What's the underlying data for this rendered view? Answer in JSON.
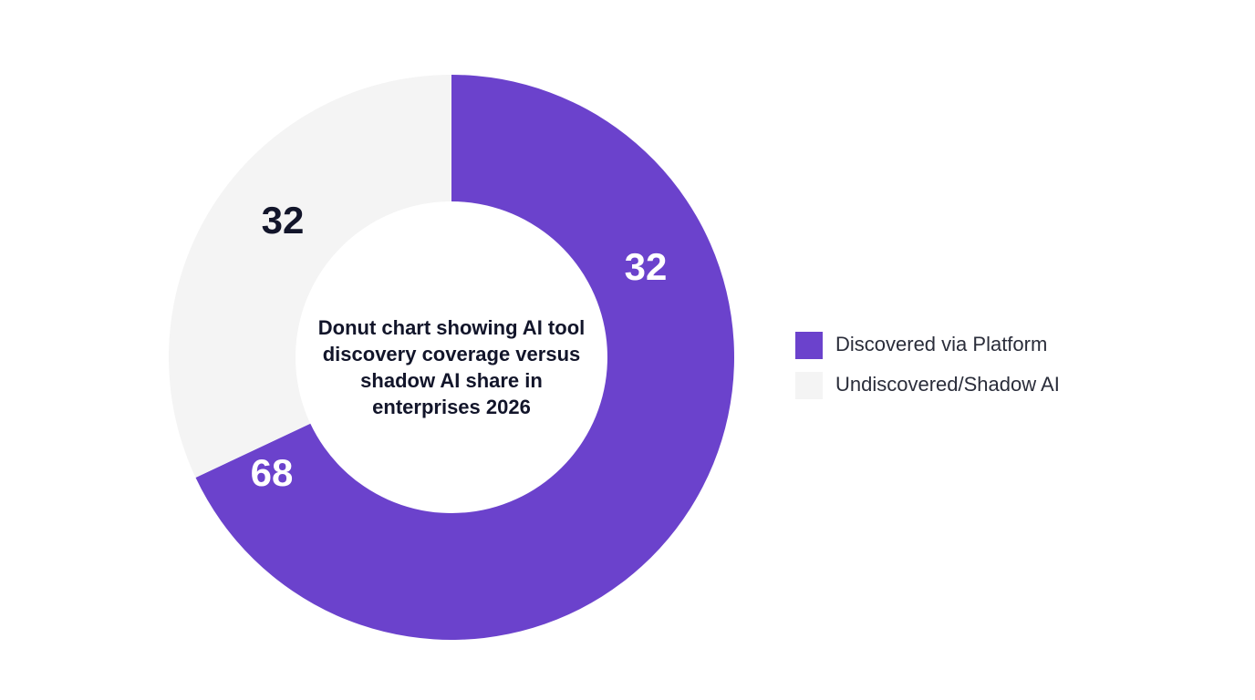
{
  "chart_data": {
    "type": "donut",
    "title": "Donut chart showing AI tool discovery coverage versus shadow AI share in enterprises 2026",
    "categories": [
      "Discovered via Platform",
      "Undiscovered/Shadow AI"
    ],
    "values": [
      68,
      32
    ],
    "colors": [
      "#6b42cc",
      "#f4f4f4"
    ],
    "annotations": [
      "32"
    ]
  }
}
